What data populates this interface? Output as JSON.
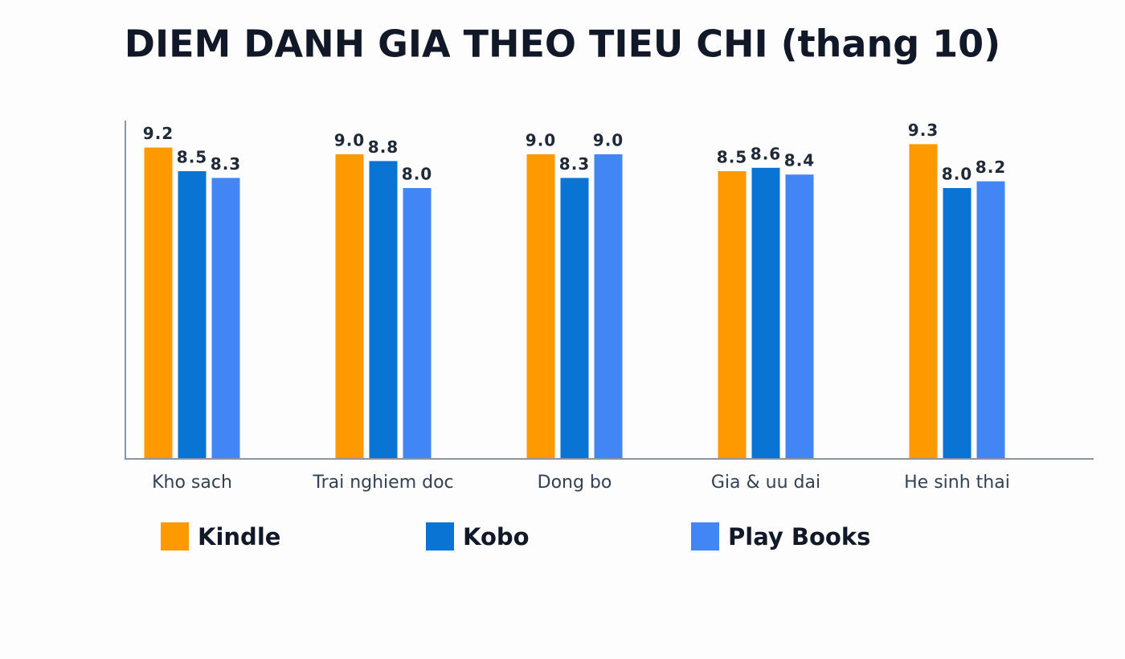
{
  "chart_data": {
    "type": "bar",
    "title": "DIEM DANH GIA THEO TIEU CHI (thang 10)",
    "categories": [
      "Kho sach",
      "Trai nghiem doc",
      "Dong bo",
      "Gia & uu dai",
      "He sinh thai"
    ],
    "series": [
      {
        "name": "Kindle",
        "color": "#ff9900",
        "values": [
          9.2,
          9.0,
          9.0,
          8.5,
          9.3
        ],
        "value_labels": [
          "9.2",
          "9.0",
          "9.0",
          "8.5",
          "9.3"
        ]
      },
      {
        "name": "Kobo",
        "color": "#0a74d4",
        "values": [
          8.5,
          8.8,
          8.3,
          8.6,
          8.0
        ],
        "value_labels": [
          "8.5",
          "8.8",
          "8.3",
          "8.6",
          "8.0"
        ]
      },
      {
        "name": "Play Books",
        "color": "#4285f4",
        "values": [
          8.3,
          8.0,
          9.0,
          8.4,
          8.2
        ],
        "value_labels": [
          "8.3",
          "8.0",
          "9.0",
          "8.4",
          "8.2"
        ]
      }
    ],
    "ylim": [
      0,
      10
    ]
  }
}
